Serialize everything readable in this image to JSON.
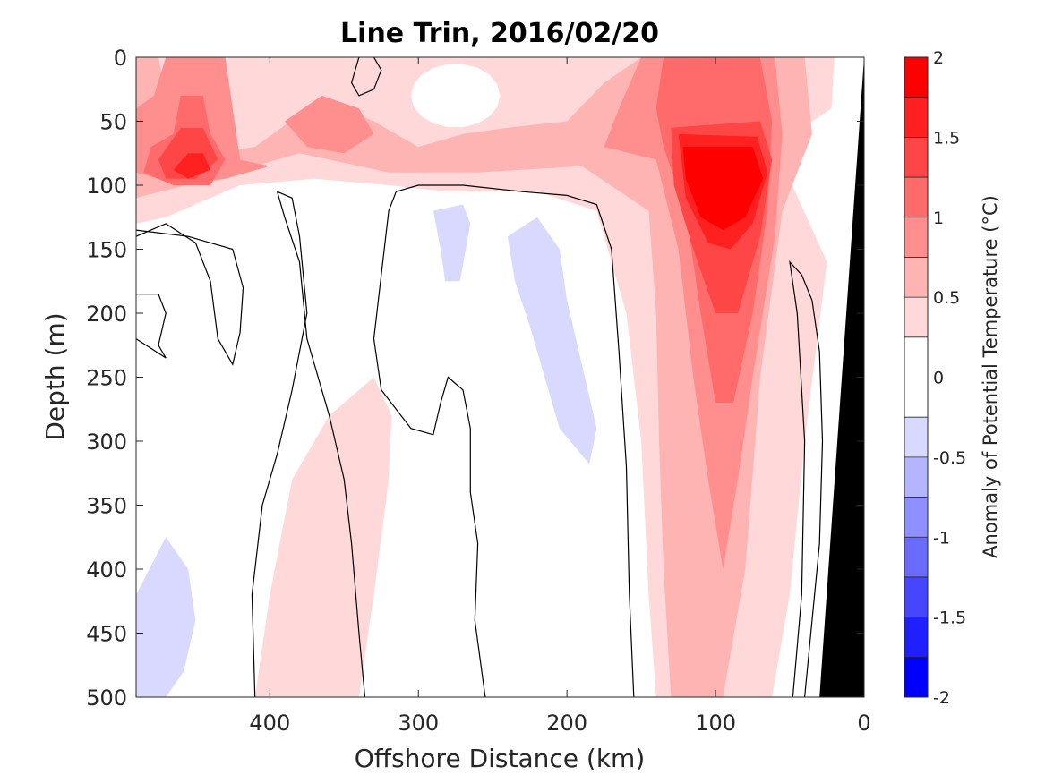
{
  "chart_data": {
    "type": "heatmap",
    "subtype": "filled-contour-section",
    "title": "Line Trin, 2016/02/20",
    "xlabel": "Offshore Distance (km)",
    "ylabel": "Depth (m)",
    "xlim": [
      490,
      0
    ],
    "x_reversed": true,
    "ylim": [
      0,
      500
    ],
    "y_reversed": true,
    "xticks": [
      400,
      300,
      200,
      100,
      0
    ],
    "yticks": [
      0,
      50,
      100,
      150,
      200,
      250,
      300,
      350,
      400,
      450,
      500
    ],
    "colorbar": {
      "label": "Anomaly of Potential Temperature (°C)",
      "range": [
        -2,
        2
      ],
      "ticks": [
        2,
        1.5,
        1,
        0.5,
        0,
        -0.5,
        -1,
        -1.5,
        -2
      ],
      "levels": [
        {
          "lo": 1.75,
          "hi": 2.0,
          "color": "#ff0000"
        },
        {
          "lo": 1.5,
          "hi": 1.75,
          "color": "#ff2020"
        },
        {
          "lo": 1.25,
          "hi": 1.5,
          "color": "#ff4646"
        },
        {
          "lo": 1.0,
          "hi": 1.25,
          "color": "#ff6b6b"
        },
        {
          "lo": 0.75,
          "hi": 1.0,
          "color": "#ff8f8f"
        },
        {
          "lo": 0.5,
          "hi": 0.75,
          "color": "#ffb4b4"
        },
        {
          "lo": 0.25,
          "hi": 0.5,
          "color": "#ffd9d9"
        },
        {
          "lo": -0.25,
          "hi": 0.25,
          "color": "#ffffff"
        },
        {
          "lo": -0.5,
          "hi": -0.25,
          "color": "#d9d9ff"
        },
        {
          "lo": -0.75,
          "hi": -0.5,
          "color": "#b4b4ff"
        },
        {
          "lo": -1.0,
          "hi": -0.75,
          "color": "#8f8fff"
        },
        {
          "lo": -1.25,
          "hi": -1.0,
          "color": "#6b6bff"
        },
        {
          "lo": -1.5,
          "hi": -1.25,
          "color": "#4646ff"
        },
        {
          "lo": -1.75,
          "hi": -1.5,
          "color": "#2020ff"
        },
        {
          "lo": -2.0,
          "hi": -1.75,
          "color": "#0000ff"
        }
      ]
    },
    "bathymetry_color": "#000000",
    "zero_contour_color": "#000000",
    "grid": false,
    "features": [
      {
        "kind": "warm_core",
        "center_km": 100,
        "center_depth_m": 110,
        "max_anomaly": 2.0
      },
      {
        "kind": "warm_patch",
        "center_km": 450,
        "center_depth_m": 85,
        "max_anomaly": 1.75
      },
      {
        "kind": "cool_patch",
        "center_km": 200,
        "center_depth_m": 230,
        "min_anomaly": -0.5
      },
      {
        "kind": "cool_patch",
        "center_km": 470,
        "center_depth_m": 450,
        "min_anomaly": -0.5
      }
    ]
  }
}
